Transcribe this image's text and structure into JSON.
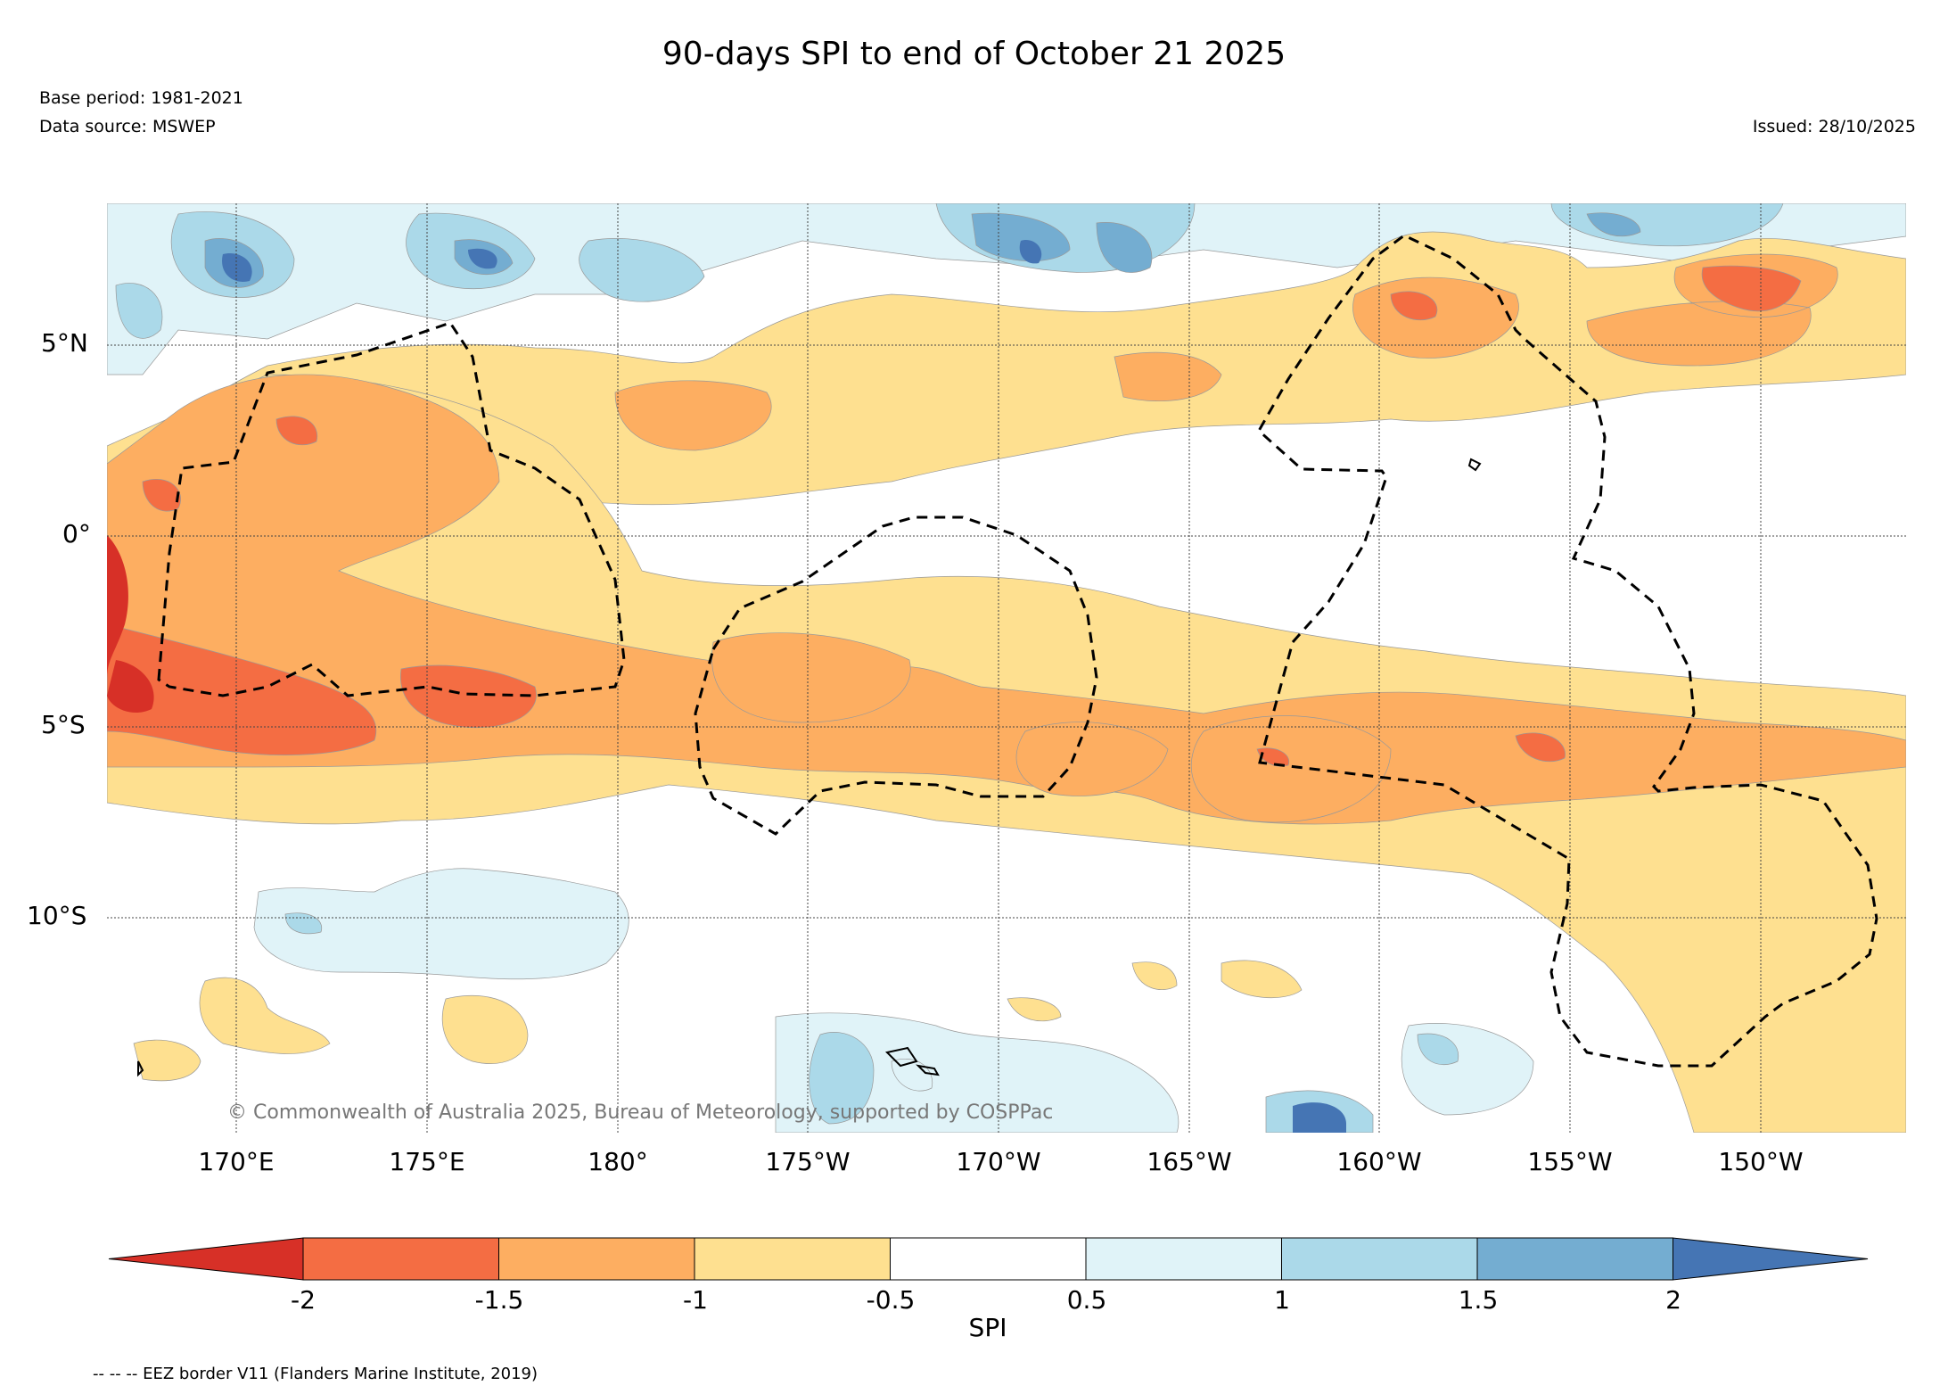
{
  "title": "90-days SPI to end of October 21 2025",
  "base_period": "Base period: 1981-2021",
  "data_source": "Data source: MSWEP",
  "issued": "Issued: 28/10/2025",
  "copyright": "© Commonwealth of Australia 2025, Bureau of Meteorology, supported by COSPPac",
  "lat_labels": [
    "5°N",
    "0°",
    "5°S",
    "10°S"
  ],
  "lon_labels": [
    "170°E",
    "175°E",
    "180°",
    "175°W",
    "170°W",
    "165°W",
    "160°W",
    "155°W",
    "150°W"
  ],
  "colorbar": {
    "title": "SPI",
    "ticks": [
      "-2",
      "-1.5",
      "-1",
      "-0.5",
      "0.5",
      "1",
      "1.5",
      "2"
    ],
    "colors": [
      "#d73027",
      "#f46d43",
      "#fdae61",
      "#fee090",
      "#ffffff",
      "#e0f3f8",
      "#abd9e9",
      "#74add1",
      "#4575b4"
    ]
  },
  "footer": "-- -- -- EEZ border V11 (Flanders Marine Institute, 2019)"
}
